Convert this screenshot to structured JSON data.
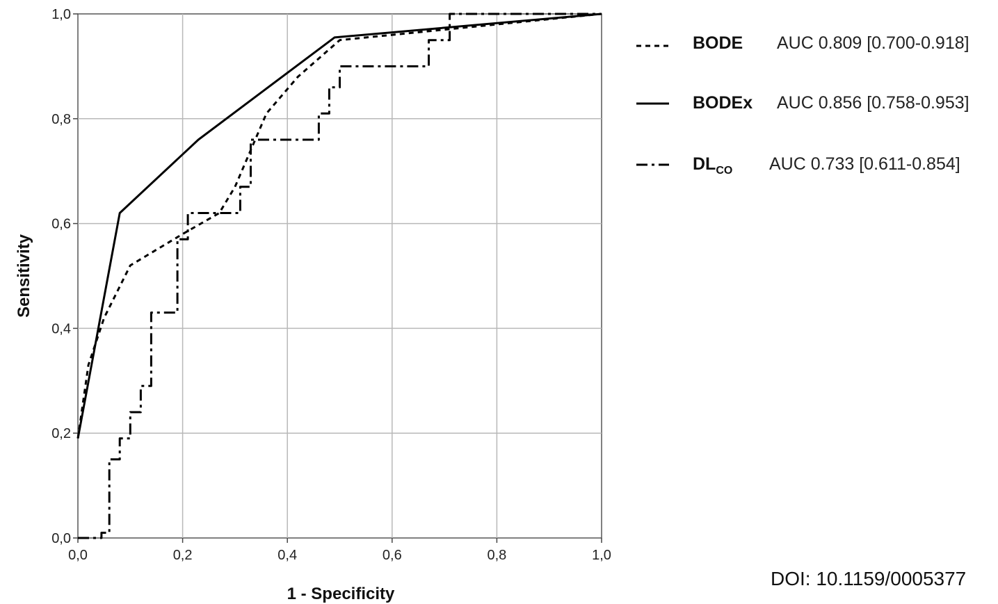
{
  "chart_data": {
    "type": "line",
    "title": "",
    "xlabel": "1 - Specificity",
    "ylabel": "Sensitivity",
    "xlim": [
      0,
      1
    ],
    "ylim": [
      0,
      1
    ],
    "xticks": [
      "0,0",
      "0,2",
      "0,4",
      "0,6",
      "0,8",
      "1,0"
    ],
    "yticks": [
      "0,0",
      "0,2",
      "0,4",
      "0,6",
      "0,8",
      "1,0"
    ],
    "grid": true,
    "legend_position": "right",
    "series": [
      {
        "name": "BODE",
        "auc_label": "AUC 0.809 [0.700-0.918]",
        "style": "dotted",
        "points": [
          [
            0,
            0.19
          ],
          [
            0.02,
            0.33
          ],
          [
            0.05,
            0.42
          ],
          [
            0.1,
            0.52
          ],
          [
            0.2,
            0.58
          ],
          [
            0.27,
            0.62
          ],
          [
            0.3,
            0.67
          ],
          [
            0.36,
            0.81
          ],
          [
            0.42,
            0.88
          ],
          [
            0.5,
            0.95
          ],
          [
            1.0,
            1.0
          ]
        ]
      },
      {
        "name": "BODEx",
        "auc_label": "AUC 0.856 [0.758-0.953]",
        "style": "solid",
        "points": [
          [
            0,
            0.19
          ],
          [
            0.08,
            0.62
          ],
          [
            0.23,
            0.76
          ],
          [
            0.49,
            0.955
          ],
          [
            1.0,
            1.0
          ]
        ]
      },
      {
        "name": "DLco",
        "auc_label": "AUC 0.733 [0.611-0.854]",
        "style": "dash-dot",
        "points": [
          [
            0,
            0
          ],
          [
            0.045,
            0
          ],
          [
            0.045,
            0.01
          ],
          [
            0.06,
            0.01
          ],
          [
            0.06,
            0.15
          ],
          [
            0.08,
            0.15
          ],
          [
            0.08,
            0.19
          ],
          [
            0.1,
            0.19
          ],
          [
            0.1,
            0.24
          ],
          [
            0.12,
            0.24
          ],
          [
            0.12,
            0.29
          ],
          [
            0.14,
            0.29
          ],
          [
            0.14,
            0.43
          ],
          [
            0.19,
            0.43
          ],
          [
            0.19,
            0.57
          ],
          [
            0.21,
            0.57
          ],
          [
            0.21,
            0.62
          ],
          [
            0.31,
            0.62
          ],
          [
            0.31,
            0.67
          ],
          [
            0.33,
            0.67
          ],
          [
            0.33,
            0.76
          ],
          [
            0.46,
            0.76
          ],
          [
            0.46,
            0.81
          ],
          [
            0.48,
            0.81
          ],
          [
            0.48,
            0.86
          ],
          [
            0.5,
            0.86
          ],
          [
            0.5,
            0.9
          ],
          [
            0.67,
            0.9
          ],
          [
            0.67,
            0.95
          ],
          [
            0.71,
            0.95
          ],
          [
            0.71,
            1.0
          ],
          [
            1.0,
            1.0
          ]
        ]
      }
    ]
  },
  "legend": {
    "items": [
      {
        "name": "BODE",
        "auc": "AUC 0.809 [0.700-0.918]"
      },
      {
        "name": "BODEx",
        "auc": "AUC 0.856 [0.758-0.953]"
      },
      {
        "name_main": "DL",
        "name_sub": "CO",
        "auc": "AUC 0.733 [0.611-0.854]"
      }
    ]
  },
  "doi": "DOI: 10.1159/0005377"
}
